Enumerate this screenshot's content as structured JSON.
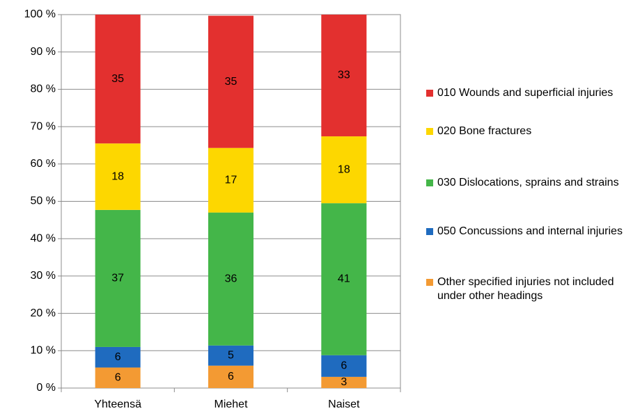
{
  "chart_data": {
    "type": "stacked_bar_100",
    "categories": [
      "Yhteensä",
      "Miehet",
      "Naiset"
    ],
    "series": [
      {
        "name": "Other specified injuries not included under other headings",
        "color": "#f39a33",
        "values": [
          5.5,
          6.0,
          3.0
        ],
        "value_labels": [
          "6",
          "6",
          "3"
        ]
      },
      {
        "name": "050  Concussions and internal injuries",
        "color": "#1f6bbf",
        "values": [
          5.5,
          5.4,
          5.8
        ],
        "value_labels": [
          "6",
          "5",
          "6"
        ]
      },
      {
        "name": "030  Dislocations, sprains and strains",
        "color": "#44b649",
        "values": [
          36.7,
          35.6,
          40.7
        ],
        "value_labels": [
          "37",
          "36",
          "41"
        ]
      },
      {
        "name": "020  Bone fractures",
        "color": "#fdd700",
        "values": [
          17.8,
          17.3,
          17.9
        ],
        "value_labels": [
          "18",
          "17",
          "18"
        ]
      },
      {
        "name": "010  Wounds and superficial injuries",
        "color": "#e3302f",
        "values": [
          34.5,
          35.4,
          32.6
        ],
        "value_labels": [
          "35",
          "35",
          "33"
        ]
      }
    ],
    "ylim": [
      0,
      100
    ],
    "yticks": [
      {
        "value": 0,
        "label": "0 %"
      },
      {
        "value": 10,
        "label": "10 %"
      },
      {
        "value": 20,
        "label": "20 %"
      },
      {
        "value": 30,
        "label": "30 %"
      },
      {
        "value": 40,
        "label": "40 %"
      },
      {
        "value": 50,
        "label": "50 %"
      },
      {
        "value": 60,
        "label": "60 %"
      },
      {
        "value": 70,
        "label": "70 %"
      },
      {
        "value": 80,
        "label": "80 %"
      },
      {
        "value": 90,
        "label": "90 %"
      },
      {
        "value": 100,
        "label": "100 %"
      }
    ],
    "grid": true,
    "legend": "right"
  }
}
